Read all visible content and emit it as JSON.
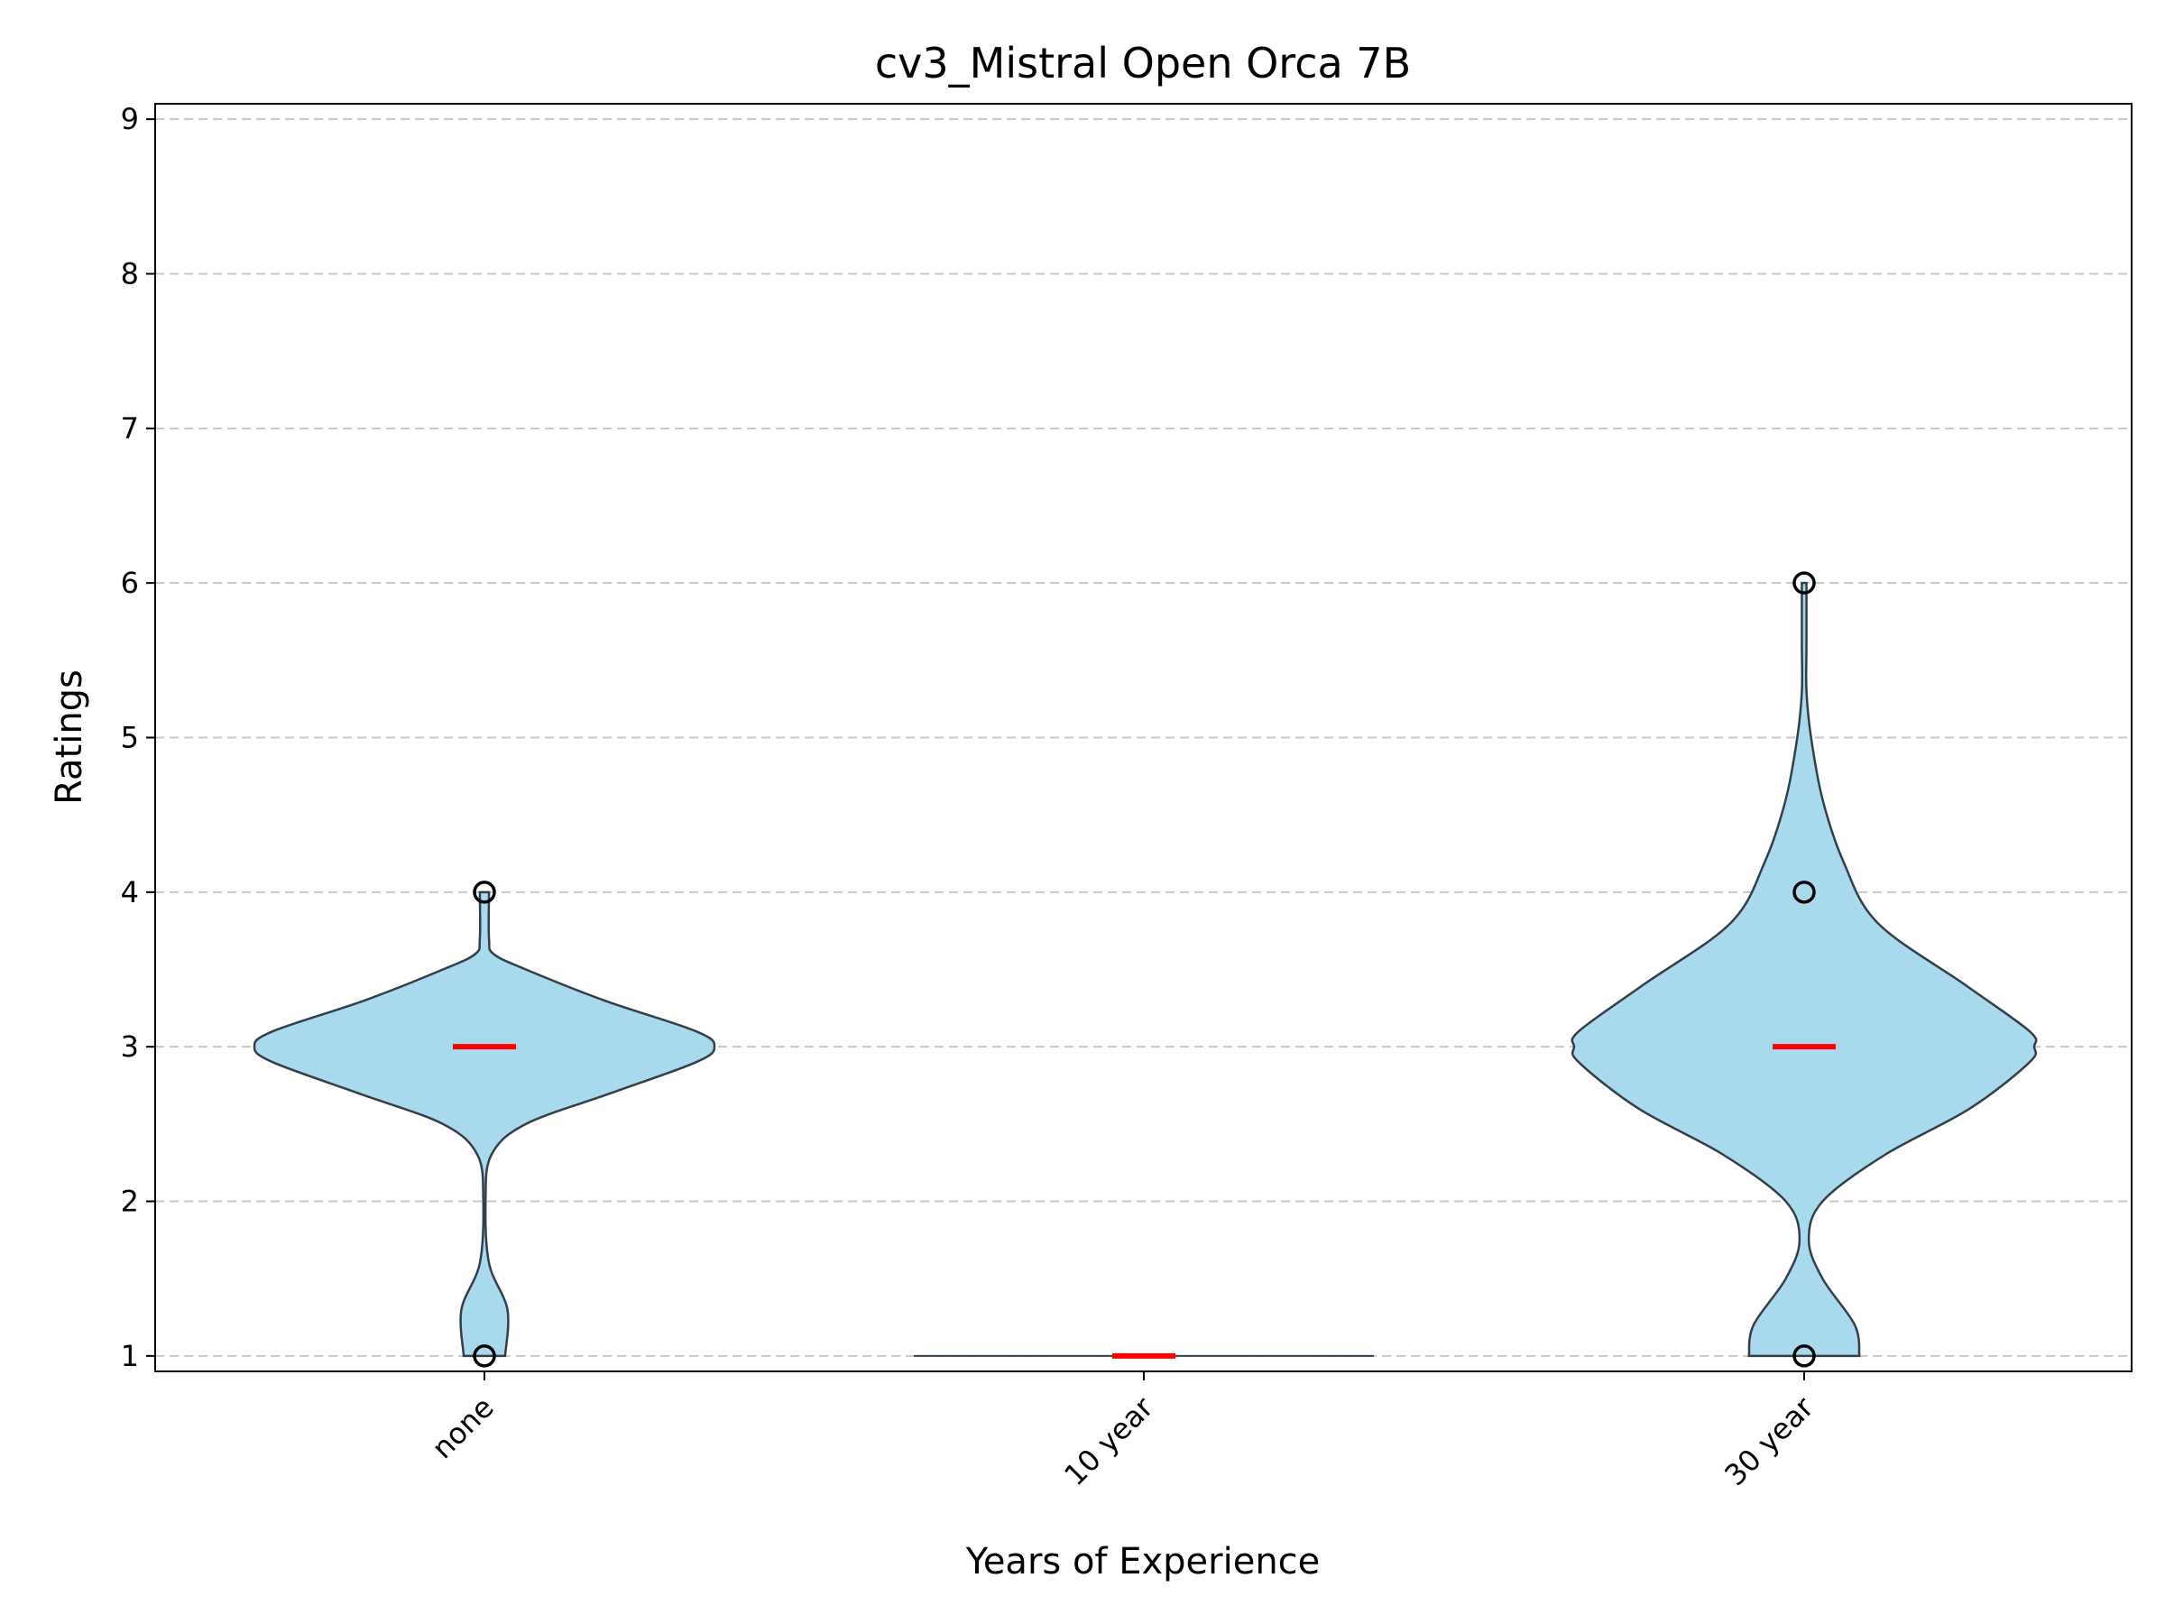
{
  "chart_data": {
    "type": "violin",
    "title": "cv3_Mistral Open Orca 7B",
    "xlabel": "Years of Experience",
    "ylabel": "Ratings",
    "categories": [
      "none",
      "10 year",
      "30 year"
    ],
    "ylim": [
      0.9,
      9.1
    ],
    "yticks": [
      "1",
      "2",
      "3",
      "4",
      "5",
      "6",
      "7",
      "8",
      "9"
    ],
    "grid": "y-dashed",
    "colors": {
      "violin_fill": "#a8d9ed",
      "violin_edge": "#333f48",
      "median": "#ff0000",
      "grid": "#c8c8c8"
    },
    "violins": [
      {
        "category": "none",
        "median": 3,
        "points": [
          1,
          4
        ],
        "profile": [
          [
            1.0,
            0.09
          ],
          [
            1.3,
            0.1
          ],
          [
            1.6,
            0.02
          ],
          [
            2.0,
            0.005
          ],
          [
            2.3,
            0.03
          ],
          [
            2.5,
            0.18
          ],
          [
            2.7,
            0.55
          ],
          [
            2.9,
            0.92
          ],
          [
            3.0,
            1.0
          ],
          [
            3.1,
            0.92
          ],
          [
            3.3,
            0.52
          ],
          [
            3.5,
            0.18
          ],
          [
            3.6,
            0.04
          ],
          [
            3.7,
            0.02
          ],
          [
            4.0,
            0.02
          ]
        ]
      },
      {
        "category": "10 year",
        "median": 1,
        "points": [],
        "profile": [
          [
            1.0,
            1.0
          ]
        ]
      },
      {
        "category": "30 year",
        "median": 3,
        "points": [
          1,
          4,
          6
        ],
        "profile": [
          [
            1.0,
            0.24
          ],
          [
            1.2,
            0.22
          ],
          [
            1.5,
            0.08
          ],
          [
            1.75,
            0.02
          ],
          [
            2.0,
            0.08
          ],
          [
            2.3,
            0.35
          ],
          [
            2.6,
            0.72
          ],
          [
            2.9,
            0.98
          ],
          [
            3.0,
            1.0
          ],
          [
            3.1,
            0.98
          ],
          [
            3.4,
            0.7
          ],
          [
            3.8,
            0.32
          ],
          [
            4.2,
            0.17
          ],
          [
            4.6,
            0.08
          ],
          [
            5.0,
            0.03
          ],
          [
            5.3,
            0.01
          ],
          [
            5.6,
            0.01
          ],
          [
            6.0,
            0.01
          ]
        ]
      }
    ]
  }
}
